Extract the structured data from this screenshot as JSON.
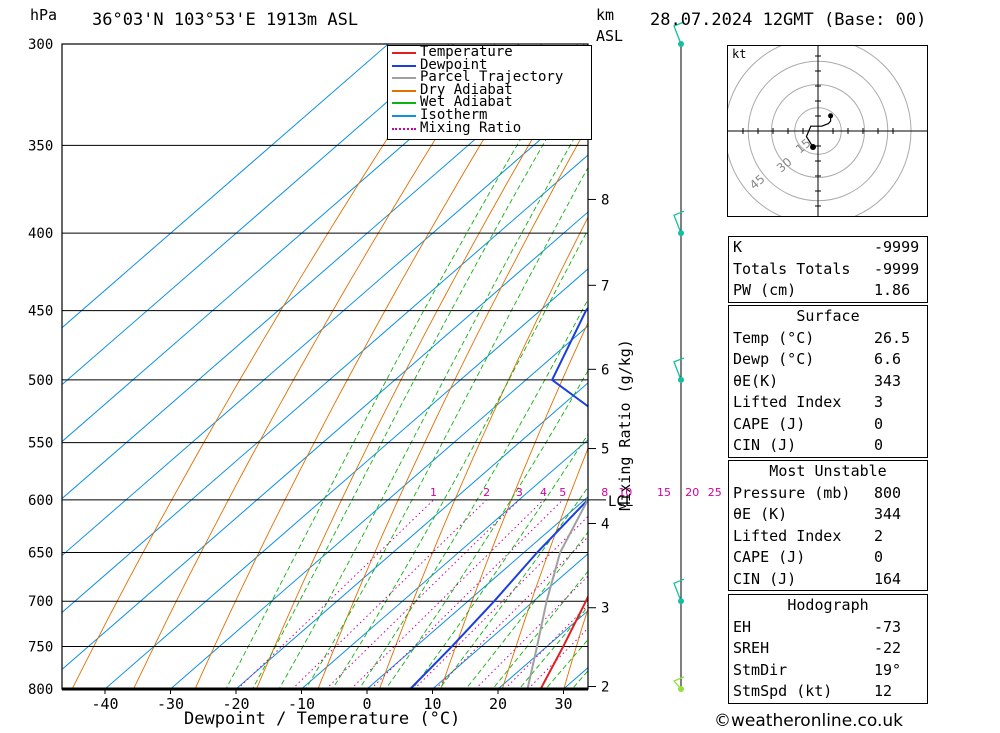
{
  "header": {
    "pressure_unit": "hPa",
    "location": "36°03'N  103°53'E  1913m  ASL",
    "height_unit_1": "km",
    "height_unit_2": "ASL",
    "datetime": "28.07.2024  12GMT  (Base: 00)"
  },
  "chart_data": {
    "type": "line",
    "title": "36°03'N  103°53'E  1913m  ASL",
    "xlabel": "Dewpoint / Temperature (°C)",
    "ylabel": "hPa",
    "right_label": "Mixing Ratio (g/kg)",
    "xlim": [
      -46,
      34
    ],
    "ylim": [
      800,
      300
    ],
    "pressure_ticks": [
      300,
      350,
      400,
      450,
      500,
      550,
      600,
      650,
      700,
      750,
      800
    ],
    "temperature_ticks": [
      -40,
      -30,
      -20,
      -10,
      0,
      10,
      20,
      30
    ],
    "km_ticks": [
      {
        "km": 2,
        "p": 797
      },
      {
        "km": 3,
        "p": 707
      },
      {
        "km": 4,
        "p": 622
      },
      {
        "km": 5,
        "p": 555
      },
      {
        "km": 6,
        "p": 492
      },
      {
        "km": 7,
        "p": 433
      },
      {
        "km": 8,
        "p": 380
      }
    ],
    "mixing_ratio_labels": [
      1,
      2,
      3,
      4,
      5,
      8,
      10,
      15,
      20,
      25
    ],
    "lcl": {
      "label": "LCL",
      "p": 600
    },
    "legend": {
      "placement": "top-right",
      "items": [
        {
          "name": "Temperature",
          "color": "#e02020",
          "style": "solid"
        },
        {
          "name": "Dewpoint",
          "color": "#1a3ee0",
          "style": "solid"
        },
        {
          "name": "Parcel Trajectory",
          "color": "#a0a0a0",
          "style": "solid"
        },
        {
          "name": "Dry Adiabat",
          "color": "#e07000",
          "style": "solid"
        },
        {
          "name": "Wet Adiabat",
          "color": "#10b010",
          "style": "solid"
        },
        {
          "name": "Isotherm",
          "color": "#1090e0",
          "style": "solid"
        },
        {
          "name": "Mixing Ratio",
          "color": "#d000a0",
          "style": "dotted"
        }
      ]
    },
    "series": [
      {
        "name": "Temperature",
        "color": "#e02020",
        "points": [
          [
            800,
            26.5
          ],
          [
            750,
            22.5
          ],
          [
            700,
            18
          ],
          [
            650,
            13
          ],
          [
            600,
            8.5
          ],
          [
            550,
            5
          ],
          [
            500,
            1.5
          ],
          [
            450,
            -4.5
          ],
          [
            400,
            -12
          ],
          [
            350,
            -21
          ]
        ]
      },
      {
        "name": "Dewpoint",
        "color": "#1a3ee0",
        "points": [
          [
            800,
            6.6
          ],
          [
            750,
            5.5
          ],
          [
            700,
            4
          ],
          [
            650,
            2
          ],
          [
            600,
            0.5
          ],
          [
            550,
            -2
          ],
          [
            500,
            -26
          ],
          [
            450,
            -33
          ],
          [
            400,
            -37
          ],
          [
            350,
            -48
          ],
          [
            300,
            -58
          ]
        ]
      },
      {
        "name": "Parcel Trajectory",
        "color": "#a0a0a0",
        "points": [
          [
            800,
            24.5
          ],
          [
            750,
            18.5
          ],
          [
            700,
            12
          ],
          [
            650,
            5.5
          ],
          [
            600,
            0.5
          ],
          [
            550,
            -4
          ],
          [
            500,
            -9.5
          ],
          [
            450,
            -15.5
          ],
          [
            400,
            -23.5
          ],
          [
            350,
            -33
          ],
          [
            300,
            -45
          ]
        ]
      }
    ],
    "wind_barbs": [
      {
        "p": 300,
        "color": "#10c0a0"
      },
      {
        "p": 400,
        "color": "#10c0a0"
      },
      {
        "p": 500,
        "color": "#10c0a0"
      },
      {
        "p": 700,
        "color": "#10c0a0"
      },
      {
        "p": 800,
        "color": "#90e040"
      }
    ]
  },
  "hodograph": {
    "unit_label": "kt",
    "ring_labels": [
      "15",
      "30",
      "45"
    ],
    "trace_points": [
      [
        0,
        0
      ],
      [
        -3,
        -4
      ],
      [
        -1,
        -8
      ],
      [
        4,
        -8
      ],
      [
        7,
        -9
      ],
      [
        8,
        -10
      ],
      [
        8,
        -12
      ]
    ]
  },
  "indices": {
    "general": [
      {
        "label": "K",
        "value": "-9999"
      },
      {
        "label": "Totals Totals",
        "value": "-9999"
      },
      {
        "label": "PW (cm)",
        "value": "1.86"
      }
    ],
    "surface": {
      "title": "Surface",
      "rows": [
        {
          "label": "Temp (°C)",
          "value": "26.5"
        },
        {
          "label": "Dewp (°C)",
          "value": "6.6"
        },
        {
          "label": "θE(K)",
          "value": "343"
        },
        {
          "label": "Lifted Index",
          "value": "3"
        },
        {
          "label": "CAPE (J)",
          "value": "0"
        },
        {
          "label": "CIN (J)",
          "value": "0"
        }
      ]
    },
    "most_unstable": {
      "title": "Most Unstable",
      "rows": [
        {
          "label": "Pressure (mb)",
          "value": "800"
        },
        {
          "label": "θE (K)",
          "value": "344"
        },
        {
          "label": "Lifted Index",
          "value": "2"
        },
        {
          "label": "CAPE (J)",
          "value": "0"
        },
        {
          "label": "CIN (J)",
          "value": "164"
        }
      ]
    },
    "hodograph": {
      "title": "Hodograph",
      "rows": [
        {
          "label": "EH",
          "value": "-73"
        },
        {
          "label": "SREH",
          "value": "-22"
        },
        {
          "label": "StmDir",
          "value": "19°"
        },
        {
          "label": "StmSpd (kt)",
          "value": "12"
        }
      ]
    }
  },
  "footer": {
    "copyright": "©weatheronline.co.uk"
  }
}
